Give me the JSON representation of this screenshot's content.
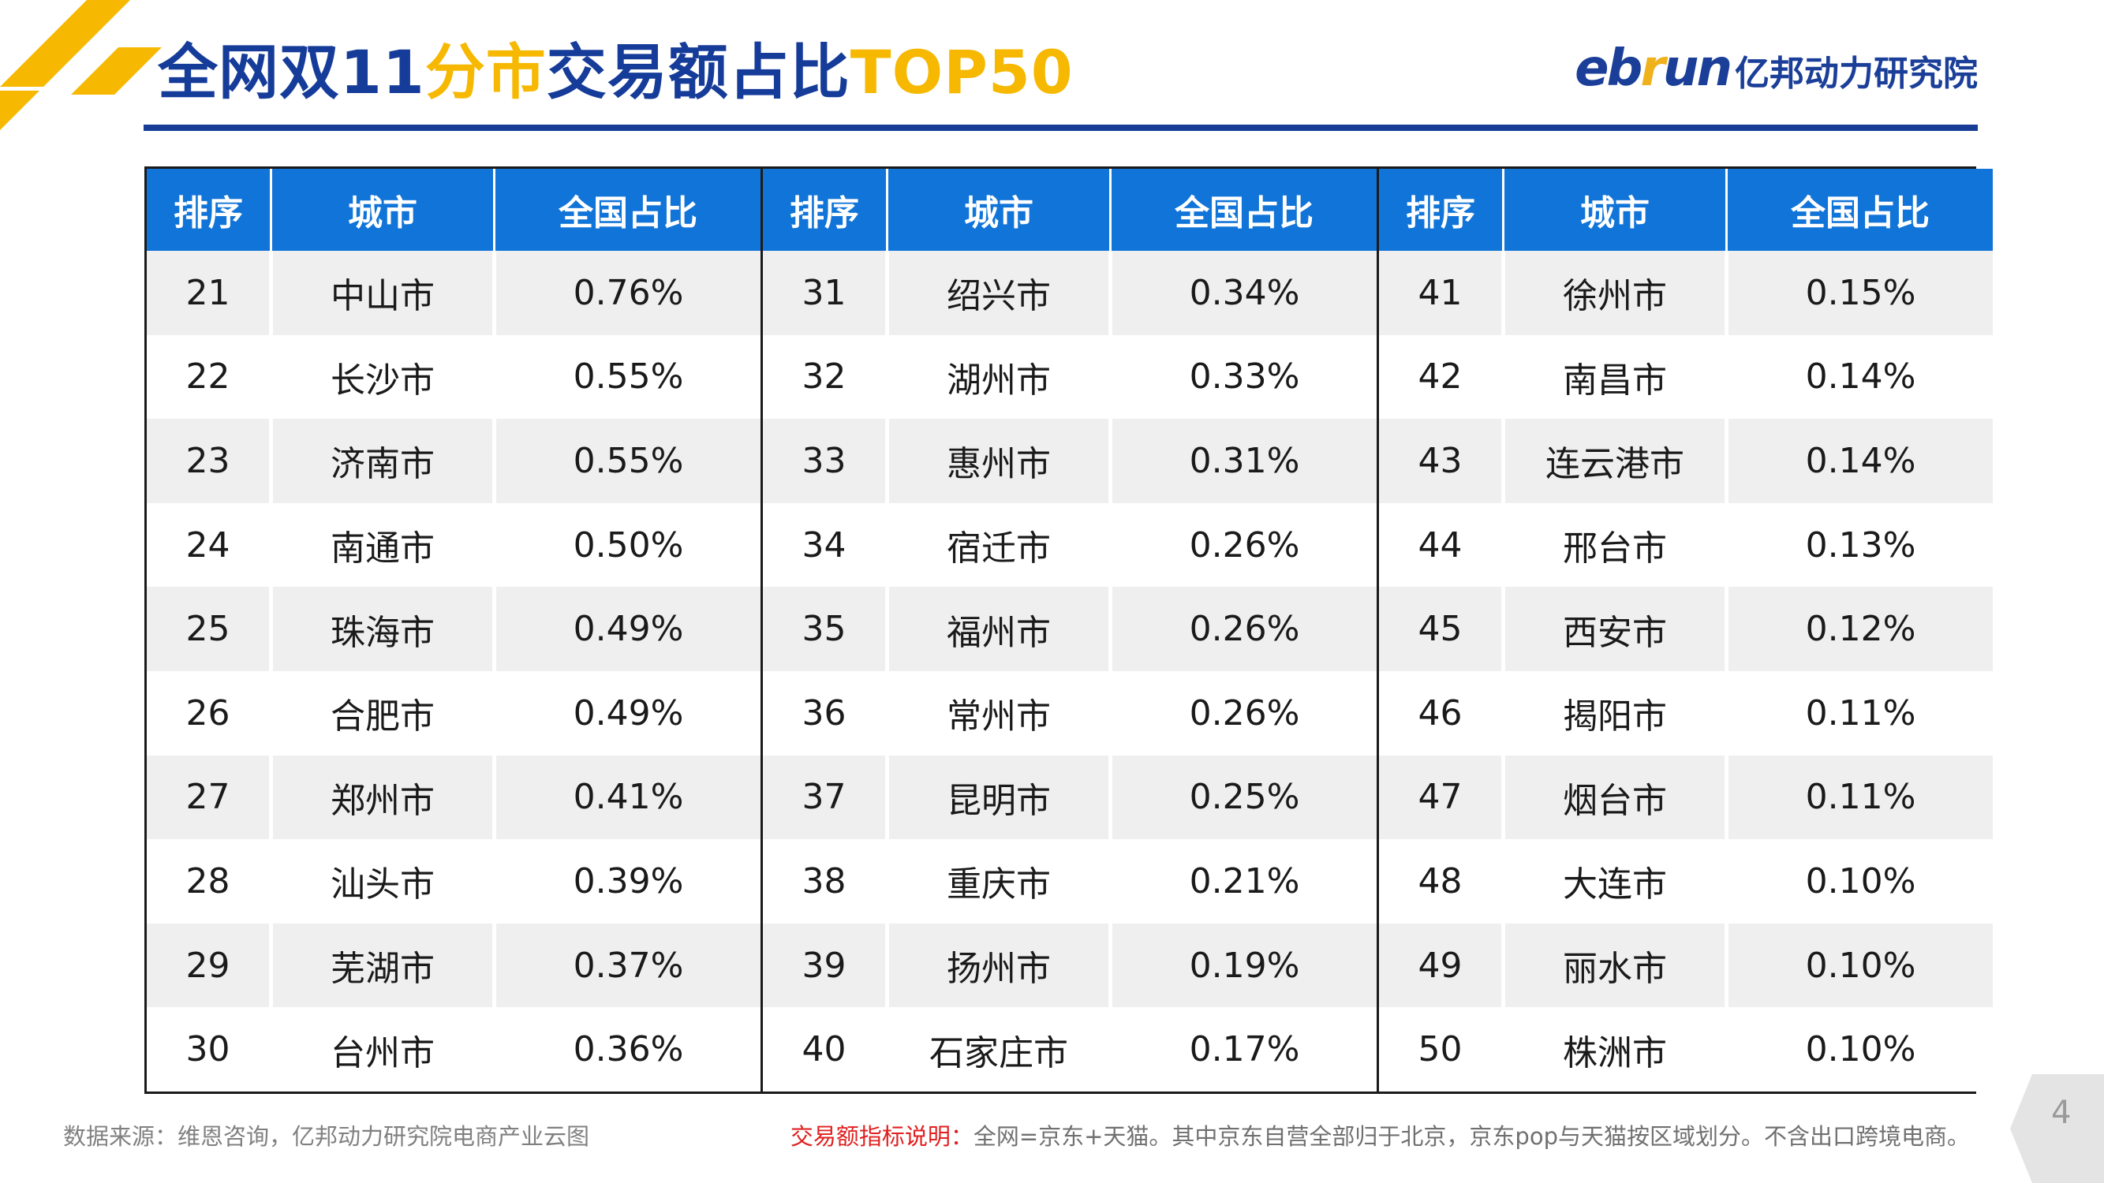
{
  "header": {
    "title_part1": "全网双11",
    "title_highlight": "分市",
    "title_part2": "交易额占比",
    "title_highlight2": "TOP50",
    "logo_word_a": "eb",
    "logo_word_b": "r",
    "logo_word_c": "un",
    "logo_org": "亿邦动力研究院"
  },
  "table": {
    "headers": [
      "排序",
      "城市",
      "全国占比"
    ],
    "panels": [
      {
        "rows": [
          {
            "rank": "21",
            "city": "中山市",
            "share": "0.76%"
          },
          {
            "rank": "22",
            "city": "长沙市",
            "share": "0.55%"
          },
          {
            "rank": "23",
            "city": "济南市",
            "share": "0.55%"
          },
          {
            "rank": "24",
            "city": "南通市",
            "share": "0.50%"
          },
          {
            "rank": "25",
            "city": "珠海市",
            "share": "0.49%"
          },
          {
            "rank": "26",
            "city": "合肥市",
            "share": "0.49%"
          },
          {
            "rank": "27",
            "city": "郑州市",
            "share": "0.41%"
          },
          {
            "rank": "28",
            "city": "汕头市",
            "share": "0.39%"
          },
          {
            "rank": "29",
            "city": "芜湖市",
            "share": "0.37%"
          },
          {
            "rank": "30",
            "city": "台州市",
            "share": "0.36%"
          }
        ]
      },
      {
        "rows": [
          {
            "rank": "31",
            "city": "绍兴市",
            "share": "0.34%"
          },
          {
            "rank": "32",
            "city": "湖州市",
            "share": "0.33%"
          },
          {
            "rank": "33",
            "city": "惠州市",
            "share": "0.31%"
          },
          {
            "rank": "34",
            "city": "宿迁市",
            "share": "0.26%"
          },
          {
            "rank": "35",
            "city": "福州市",
            "share": "0.26%"
          },
          {
            "rank": "36",
            "city": "常州市",
            "share": "0.26%"
          },
          {
            "rank": "37",
            "city": "昆明市",
            "share": "0.25%"
          },
          {
            "rank": "38",
            "city": "重庆市",
            "share": "0.21%"
          },
          {
            "rank": "39",
            "city": "扬州市",
            "share": "0.19%"
          },
          {
            "rank": "40",
            "city": "石家庄市",
            "share": "0.17%"
          }
        ]
      },
      {
        "rows": [
          {
            "rank": "41",
            "city": "徐州市",
            "share": "0.15%"
          },
          {
            "rank": "42",
            "city": "南昌市",
            "share": "0.14%"
          },
          {
            "rank": "43",
            "city": "连云港市",
            "share": "0.14%"
          },
          {
            "rank": "44",
            "city": "邢台市",
            "share": "0.13%"
          },
          {
            "rank": "45",
            "city": "西安市",
            "share": "0.12%"
          },
          {
            "rank": "46",
            "city": "揭阳市",
            "share": "0.11%"
          },
          {
            "rank": "47",
            "city": "烟台市",
            "share": "0.11%"
          },
          {
            "rank": "48",
            "city": "大连市",
            "share": "0.10%"
          },
          {
            "rank": "49",
            "city": "丽水市",
            "share": "0.10%"
          },
          {
            "rank": "50",
            "city": "株洲市",
            "share": "0.10%"
          }
        ]
      }
    ]
  },
  "footer": {
    "source": "数据来源：维恩咨询，亿邦动力研究院电商产业云图",
    "note_label": "交易额指标说明：",
    "note_text": "全网=京东+天猫。其中京东自营全部归于北京，京东pop与天猫按区域划分。不含出口跨境电商。",
    "page_number": "4"
  },
  "colors": {
    "title_blue": "#163c9a",
    "highlight_yellow": "#f6b800",
    "header_fill": "#1174d8",
    "stripe": "#efefef",
    "note_red": "#e02020"
  }
}
